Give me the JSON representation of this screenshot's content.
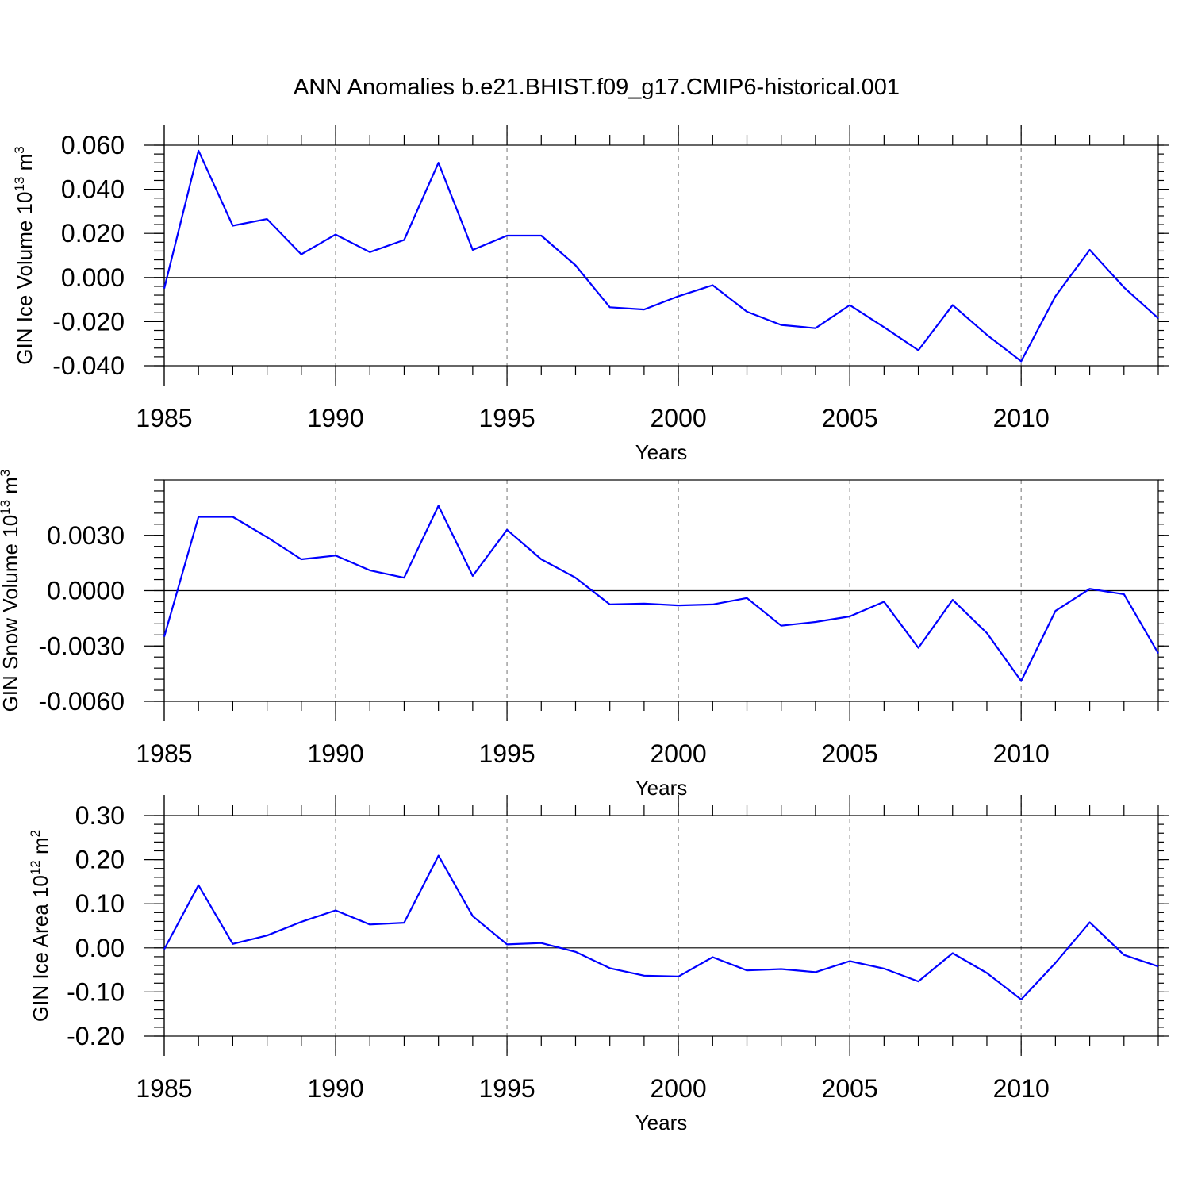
{
  "figure": {
    "title": "ANN Anomalies b.e21.BHIST.f09_g17.CMIP6-historical.001",
    "line_color": "#0000ff"
  },
  "chart_data": [
    {
      "type": "line",
      "ylabel": "GIN Ice Volume 10",
      "ylabel_exp": "13",
      "ylabel_unit": " m",
      "ylabel_unit_exp": "3",
      "xlabel": "Years",
      "xlim": [
        1985,
        2014
      ],
      "ylim": [
        -0.04,
        0.06
      ],
      "yticks": [
        -0.04,
        -0.02,
        0.0,
        0.02,
        0.04,
        0.06
      ],
      "ytick_labels": [
        "-0.040",
        "-0.020",
        "0.000",
        "0.020",
        "0.040",
        "0.060"
      ],
      "xticks": [
        1985,
        1990,
        1995,
        2000,
        2005,
        2010
      ],
      "xtick_labels": [
        "1985",
        "1990",
        "1995",
        "2000",
        "2005",
        "2010"
      ],
      "x": [
        1985,
        1986,
        1987,
        1988,
        1989,
        1990,
        1991,
        1992,
        1993,
        1994,
        1995,
        1996,
        1997,
        1998,
        1999,
        2000,
        2001,
        2002,
        2003,
        2004,
        2005,
        2006,
        2007,
        2008,
        2009,
        2010,
        2011,
        2012,
        2013,
        2014
      ],
      "series": [
        {
          "values": [
            -0.005,
            0.0575,
            0.0235,
            0.0265,
            0.0105,
            0.0195,
            0.0115,
            0.017,
            0.052,
            0.0125,
            0.019,
            0.019,
            0.0055,
            -0.0135,
            -0.0145,
            -0.0085,
            -0.0035,
            -0.0155,
            -0.0215,
            -0.023,
            -0.0125,
            -0.0225,
            -0.033,
            -0.0125,
            -0.026,
            -0.038,
            -0.0085,
            0.0125,
            -0.0045,
            -0.0185
          ]
        }
      ]
    },
    {
      "type": "line",
      "ylabel": "GIN Snow Volume 10",
      "ylabel_exp": "13",
      "ylabel_unit": " m",
      "ylabel_unit_exp": "3",
      "xlabel": "Years",
      "xlim": [
        1985,
        2014
      ],
      "ylim": [
        -0.006,
        0.006
      ],
      "yticks": [
        -0.006,
        -0.003,
        0.0,
        0.003
      ],
      "ytick_labels": [
        "-0.0060",
        "-0.0030",
        "0.0000",
        "0.0030"
      ],
      "xticks": [
        1985,
        1990,
        1995,
        2000,
        2005,
        2010
      ],
      "xtick_labels": [
        "1985",
        "1990",
        "1995",
        "2000",
        "2005",
        "2010"
      ],
      "x": [
        1985,
        1986,
        1987,
        1988,
        1989,
        1990,
        1991,
        1992,
        1993,
        1994,
        1995,
        1996,
        1997,
        1998,
        1999,
        2000,
        2001,
        2002,
        2003,
        2004,
        2005,
        2006,
        2007,
        2008,
        2009,
        2010,
        2011,
        2012,
        2013,
        2014
      ],
      "series": [
        {
          "values": [
            -0.0025,
            0.004,
            0.004,
            0.0029,
            0.0017,
            0.0019,
            0.0011,
            0.0007,
            0.0046,
            0.0008,
            0.0033,
            0.0017,
            0.0007,
            -0.00075,
            -0.0007,
            -0.0008,
            -0.00075,
            -0.0004,
            -0.0019,
            -0.0017,
            -0.0014,
            -0.0006,
            -0.0031,
            -0.0005,
            -0.0023,
            -0.0049,
            -0.0011,
            0.0001,
            -0.0002,
            -0.0034
          ]
        }
      ]
    },
    {
      "type": "line",
      "ylabel": "GIN Ice Area 10",
      "ylabel_exp": "12",
      "ylabel_unit": " m",
      "ylabel_unit_exp": "2",
      "xlabel": "Years",
      "xlim": [
        1985,
        2014
      ],
      "ylim": [
        -0.2,
        0.3
      ],
      "yticks": [
        -0.2,
        -0.1,
        0.0,
        0.1,
        0.2,
        0.3
      ],
      "ytick_labels": [
        "-0.20",
        "-0.10",
        "0.00",
        "0.10",
        "0.20",
        "0.30"
      ],
      "xticks": [
        1985,
        1990,
        1995,
        2000,
        2005,
        2010
      ],
      "xtick_labels": [
        "1985",
        "1990",
        "1995",
        "2000",
        "2005",
        "2010"
      ],
      "x": [
        1985,
        1986,
        1987,
        1988,
        1989,
        1990,
        1991,
        1992,
        1993,
        1994,
        1995,
        1996,
        1997,
        1998,
        1999,
        2000,
        2001,
        2002,
        2003,
        2004,
        2005,
        2006,
        2007,
        2008,
        2009,
        2010,
        2011,
        2012,
        2013,
        2014
      ],
      "series": [
        {
          "values": [
            -0.003,
            0.142,
            0.009,
            0.028,
            0.059,
            0.085,
            0.053,
            0.057,
            0.209,
            0.072,
            0.008,
            0.011,
            -0.009,
            -0.046,
            -0.063,
            -0.065,
            -0.021,
            -0.051,
            -0.048,
            -0.055,
            -0.03,
            -0.047,
            -0.076,
            -0.012,
            -0.057,
            -0.117,
            -0.034,
            0.058,
            -0.016,
            -0.042
          ]
        }
      ]
    }
  ]
}
